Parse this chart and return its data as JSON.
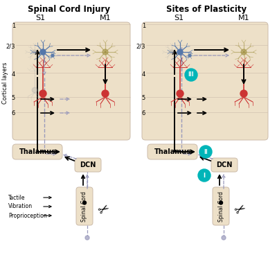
{
  "panel1_title": "Spinal Cord Injury",
  "panel2_title": "Sites of Plasticity",
  "panel_bg": "#ede0c8",
  "box_bg": "#ede0c8",
  "s1_label": "S1",
  "m1_label": "M1",
  "cortical_layers_label": "Cortical layers",
  "layer_labels": [
    "1",
    "2/3",
    "4",
    "5",
    "6"
  ],
  "thalamus_label": "Thalamus",
  "dcn_label": "DCN",
  "spinal_cord_label": "Spinal Cord",
  "sensory_labels": [
    "Tactile",
    "Vibration",
    "Proprioception"
  ],
  "teal_color": "#00b5b8",
  "blue_neuron": "#5577aa",
  "red_neuron": "#cc3333",
  "olive_neuron": "#a09040",
  "gray_neuron": "#aaaaaa",
  "arrow_black": "#111111",
  "arrow_gray": "#9999bb",
  "bg_white": "#ffffff"
}
